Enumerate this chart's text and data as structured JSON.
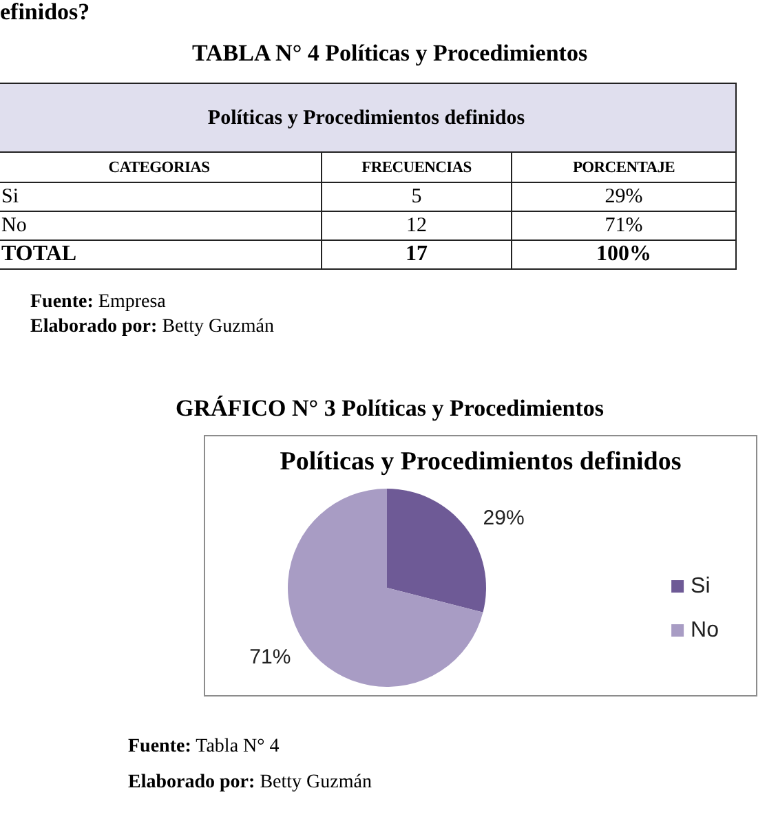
{
  "chart_data": [
    {
      "type": "other",
      "title": "TABLA N° 4 Políticas y Procedimientos",
      "subtitle": "Políticas y Procedimientos definidos",
      "xlabel": "CATEGORIAS",
      "categories": [
        "Si",
        "No",
        "TOTAL"
      ],
      "series": [
        {
          "name": "FRECUENCIAS",
          "values": [
            5,
            12,
            17
          ]
        },
        {
          "name": "PORCENTAJE",
          "values": [
            29,
            71,
            100
          ],
          "value_labels": [
            "29%",
            "71%",
            "100%"
          ]
        }
      ],
      "data_labels": true,
      "annotations": [
        "efinidos?",
        "Fuente: Empresa",
        "Elaborado por: Betty Guzmán"
      ]
    },
    {
      "type": "pie",
      "title": "GRÁFICO N° 3 Políticas y Procedimientos",
      "subtitle": "Políticas y Procedimientos definidos",
      "categories": [
        "Si",
        "No"
      ],
      "values": [
        29,
        71
      ],
      "colors": [
        "#6e5a96",
        "#a89cc4"
      ],
      "value_labels": [
        "29%",
        "71%"
      ],
      "legend": "right",
      "annotations": [
        "Fuente: Tabla N° 4",
        "Elaborado por: Betty Guzmán"
      ]
    }
  ]
}
